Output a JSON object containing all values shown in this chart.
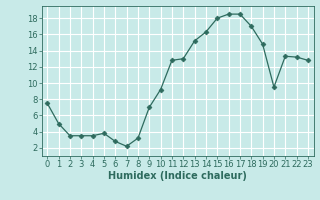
{
  "x": [
    0,
    1,
    2,
    3,
    4,
    5,
    6,
    7,
    8,
    9,
    10,
    11,
    12,
    13,
    14,
    15,
    16,
    17,
    18,
    19,
    20,
    21,
    22,
    23
  ],
  "y": [
    7.5,
    5.0,
    3.5,
    3.5,
    3.5,
    3.8,
    2.8,
    2.2,
    3.2,
    7.0,
    9.2,
    12.8,
    13.0,
    15.2,
    16.3,
    18.0,
    18.5,
    18.5,
    17.0,
    14.8,
    9.5,
    13.3,
    13.2,
    12.8
  ],
  "line_color": "#2e6b5e",
  "marker": "D",
  "markersize": 2.5,
  "bg_color": "#c8eae8",
  "grid_color": "#ffffff",
  "xlabel": "Humidex (Indice chaleur)",
  "xlim": [
    -0.5,
    23.5
  ],
  "ylim": [
    1,
    19.5
  ],
  "yticks": [
    2,
    4,
    6,
    8,
    10,
    12,
    14,
    16,
    18
  ],
  "xticks": [
    0,
    1,
    2,
    3,
    4,
    5,
    6,
    7,
    8,
    9,
    10,
    11,
    12,
    13,
    14,
    15,
    16,
    17,
    18,
    19,
    20,
    21,
    22,
    23
  ],
  "title_color": "#2e6b5e",
  "label_fontsize": 7,
  "tick_fontsize": 6
}
